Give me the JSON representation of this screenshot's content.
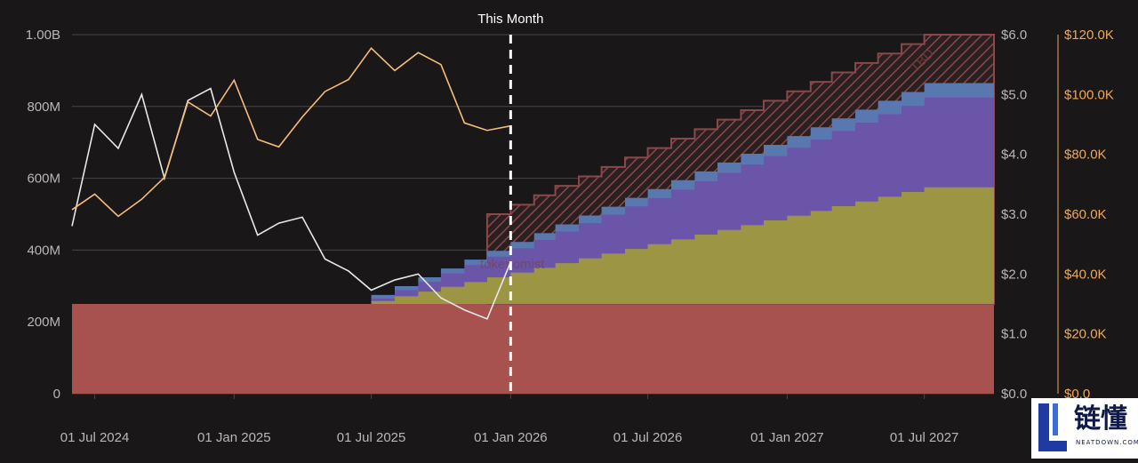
{
  "chart_data": {
    "type": "area",
    "title": "",
    "annotation": "This Month",
    "watermark": "tokenomist",
    "tbd_label": "TBD",
    "x_ticks": [
      "01 Jul 2024",
      "01 Jan 2025",
      "01 Jul 2025",
      "01 Jan 2026",
      "01 Jul 2026",
      "01 Jan 2027",
      "01 Jul 2027"
    ],
    "x_range": [
      "2024-06-01",
      "2027-10-01"
    ],
    "this_month": "2026-01-01",
    "left_axis": {
      "ticks": [
        "0",
        "200M",
        "400M",
        "600M",
        "800M",
        "1.00B"
      ],
      "range": [
        0,
        1000000000
      ]
    },
    "right_axis_price": {
      "ticks": [
        "$0.0",
        "$1.0",
        "$2.0",
        "$3.0",
        "$4.0",
        "$5.0",
        "$6.0"
      ],
      "range": [
        0,
        6
      ]
    },
    "right_axis_mcap": {
      "ticks": [
        "$0.0",
        "$20.0K",
        "$40.0K",
        "$60.0K",
        "$80.0K",
        "$100.0K",
        "$120.0K"
      ],
      "range": [
        0,
        120000
      ],
      "color": "#f0a955"
    },
    "colors": {
      "background": "#1a1718",
      "grid": "#4a4548",
      "base": "#a85250",
      "yellow": "#9c9544",
      "purple": "#6a55a8",
      "blue": "#5a78b0",
      "tbd": "#8a4848",
      "price_line": "#e8e8e8",
      "mcap_line": "#f5bd7a",
      "axis_text": "#b8b8b8",
      "mcap_text": "#f0a955"
    },
    "base_allocation": 250000000,
    "stack_start": "2025-07-01",
    "stack_end": "2027-07-01",
    "series": [
      {
        "name": "",
        "color_key": "yellow",
        "start_value": 258000000,
        "end_value": 575000000
      },
      {
        "name": "",
        "color_key": "purple",
        "start_value": 265000000,
        "end_value": 825000000
      },
      {
        "name": "",
        "color_key": "blue",
        "start_value": 275000000,
        "end_value": 865000000
      },
      {
        "name": "TBD",
        "color_key": "tbd",
        "start_value": 500000000,
        "end_value": 1000000000,
        "start": "2025-12-01"
      }
    ],
    "price_series": {
      "x": [
        "2024-06-01",
        "2024-07-01",
        "2024-08-01",
        "2024-09-01",
        "2024-10-01",
        "2024-11-01",
        "2024-12-01",
        "2025-01-01",
        "2025-02-01",
        "2025-03-01",
        "2025-04-01",
        "2025-05-01",
        "2025-06-01",
        "2025-07-01",
        "2025-08-01",
        "2025-09-01",
        "2025-10-01",
        "2025-11-01",
        "2025-12-01",
        "2026-01-01"
      ],
      "y": [
        2.8,
        4.5,
        4.1,
        5.0,
        3.6,
        4.9,
        5.1,
        3.7,
        2.65,
        2.85,
        2.95,
        2.25,
        2.05,
        1.73,
        1.9,
        2.0,
        1.6,
        1.4,
        1.25,
        2.2
      ]
    },
    "mcap_series": {
      "x": [
        "2024-06-01",
        "2024-07-01",
        "2024-08-01",
        "2024-09-01",
        "2024-10-01",
        "2024-11-01",
        "2024-12-01",
        "2025-01-01",
        "2025-02-01",
        "2025-03-01",
        "2025-04-01",
        "2025-05-01",
        "2025-06-01",
        "2025-07-01",
        "2025-08-01",
        "2025-09-01",
        "2025-10-01",
        "2025-11-01",
        "2025-12-01",
        "2026-01-01"
      ],
      "y": [
        61500,
        66700,
        59300,
        65000,
        72300,
        97500,
        92800,
        104800,
        85000,
        82500,
        92500,
        101000,
        105000,
        115500,
        108000,
        114000,
        110000,
        90500,
        88000,
        89500
      ]
    }
  }
}
